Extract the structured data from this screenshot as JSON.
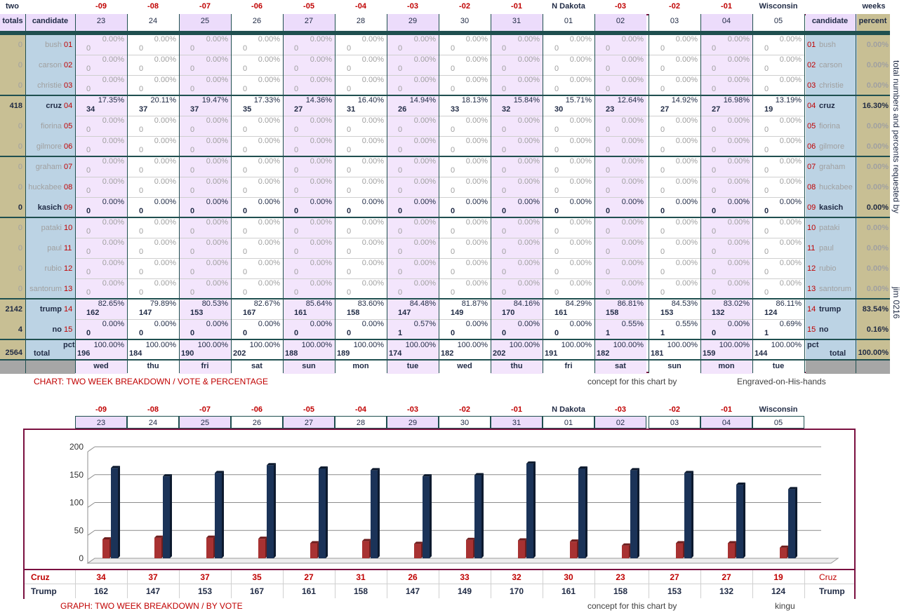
{
  "header": {
    "left_label": "two",
    "right_label": "weeks",
    "days": [
      "-09",
      "-08",
      "-07",
      "-06",
      "-05",
      "-04",
      "-03",
      "-02",
      "-01",
      "N Dakota",
      "-03",
      "-02",
      "-01",
      "Wisconsin"
    ],
    "dates": [
      "23",
      "24",
      "25",
      "26",
      "27",
      "28",
      "29",
      "30",
      "31",
      "01",
      "02",
      "03",
      "04",
      "05"
    ],
    "weekdays": [
      "wed",
      "thu",
      "fri",
      "sat",
      "sun",
      "mon",
      "tue",
      "wed",
      "thu",
      "fri",
      "sat",
      "sun",
      "mon",
      "tue"
    ],
    "col_totals": "totals",
    "col_candidate": "candidate",
    "col_percent": "percent"
  },
  "candidates": [
    {
      "name": "bush",
      "num": "01",
      "total": "0",
      "pct": "0.00%",
      "active": false
    },
    {
      "name": "carson",
      "num": "02",
      "total": "0",
      "pct": "0.00%",
      "active": false
    },
    {
      "name": "christie",
      "num": "03",
      "total": "0",
      "pct": "0.00%",
      "active": false
    },
    {
      "name": "cruz",
      "num": "04",
      "total": "418",
      "pct": "16.30%",
      "active": true
    },
    {
      "name": "fiorina",
      "num": "05",
      "total": "0",
      "pct": "0.00%",
      "active": false
    },
    {
      "name": "gilmore",
      "num": "06",
      "total": "0",
      "pct": "0.00%",
      "active": false
    },
    {
      "name": "graham",
      "num": "07",
      "total": "0",
      "pct": "0.00%",
      "active": false
    },
    {
      "name": "huckabee",
      "num": "08",
      "total": "0",
      "pct": "0.00%",
      "active": false
    },
    {
      "name": "kasich",
      "num": "09",
      "total": "0",
      "pct": "0.00%",
      "active": true
    },
    {
      "name": "pataki",
      "num": "10",
      "total": "0",
      "pct": "0.00%",
      "active": false
    },
    {
      "name": "paul",
      "num": "11",
      "total": "0",
      "pct": "0.00%",
      "active": false
    },
    {
      "name": "rubio",
      "num": "12",
      "total": "0",
      "pct": "0.00%",
      "active": false
    },
    {
      "name": "santorum",
      "num": "13",
      "total": "0",
      "pct": "0.00%",
      "active": false
    },
    {
      "name": "trump",
      "num": "14",
      "total": "2142",
      "pct": "83.54%",
      "active": true
    },
    {
      "name": "no",
      "num": "15",
      "total": "4",
      "pct": "0.16%",
      "active": true
    }
  ],
  "daily": {
    "cruz_votes": [
      34,
      37,
      37,
      35,
      27,
      31,
      26,
      33,
      32,
      30,
      23,
      27,
      27,
      19
    ],
    "cruz_pct": [
      "17.35%",
      "20.11%",
      "19.47%",
      "17.33%",
      "14.36%",
      "16.40%",
      "14.94%",
      "18.13%",
      "15.84%",
      "15.71%",
      "12.64%",
      "14.92%",
      "16.98%",
      "13.19%"
    ],
    "trump_votes": [
      162,
      147,
      153,
      167,
      161,
      158,
      147,
      149,
      170,
      161,
      158,
      153,
      132,
      124
    ],
    "trump_pct": [
      "82.65%",
      "79.89%",
      "80.53%",
      "82.67%",
      "85.64%",
      "83.60%",
      "84.48%",
      "81.87%",
      "84.16%",
      "84.29%",
      "86.81%",
      "84.53%",
      "83.02%",
      "86.11%"
    ],
    "no_votes": [
      0,
      0,
      0,
      0,
      0,
      0,
      1,
      0,
      0,
      0,
      1,
      1,
      0,
      1
    ],
    "no_pct": [
      "0.00%",
      "0.00%",
      "0.00%",
      "0.00%",
      "0.00%",
      "0.00%",
      "0.57%",
      "0.00%",
      "0.00%",
      "0.00%",
      "0.55%",
      "0.55%",
      "0.00%",
      "0.69%"
    ],
    "totals": [
      196,
      184,
      190,
      202,
      188,
      189,
      174,
      182,
      202,
      191,
      182,
      181,
      159,
      144
    ],
    "zero_pct": "0.00%",
    "total_pct": "100.00%"
  },
  "footer_row": {
    "grand_total": "2564",
    "pct_label": "pct",
    "total_label": "total",
    "grand_pct": "100.00%"
  },
  "side_text": {
    "vertical": "total numbers and percents requested by",
    "signature": "jim 0216"
  },
  "captions": {
    "chart_caption": "CHART: TWO WEEK BREAKDOWN / VOTE & PERCENTAGE",
    "concept1": "concept for this chart by",
    "author1": "Engraved-on-His-hands",
    "graph_caption": "GRAPH: TWO WEEK BREAKDOWN / BY VOTE",
    "concept2": "concept for this chart by",
    "author2": "kingu"
  },
  "colors": {
    "cruz": "#a83232",
    "trump": "#1b3358",
    "frame": "#7a1040",
    "lilac": "#ecdcfb",
    "tan": "#c8bf94",
    "blue": "#bcd3e4"
  },
  "chart_data": {
    "type": "bar",
    "categories": [
      "23",
      "24",
      "25",
      "26",
      "27",
      "28",
      "29",
      "30",
      "31",
      "01",
      "02",
      "03",
      "04",
      "05"
    ],
    "series": [
      {
        "name": "Cruz",
        "values": [
          34,
          37,
          37,
          35,
          27,
          31,
          26,
          33,
          32,
          30,
          23,
          27,
          27,
          19
        ]
      },
      {
        "name": "Trump",
        "values": [
          162,
          147,
          153,
          167,
          161,
          158,
          147,
          149,
          170,
          161,
          158,
          153,
          132,
          124
        ]
      }
    ],
    "title": "",
    "xlabel": "",
    "ylabel": "",
    "ylim": [
      0,
      200
    ],
    "yticks": [
      0,
      50,
      100,
      150,
      200
    ],
    "grid": true,
    "legend": "bottom table"
  }
}
